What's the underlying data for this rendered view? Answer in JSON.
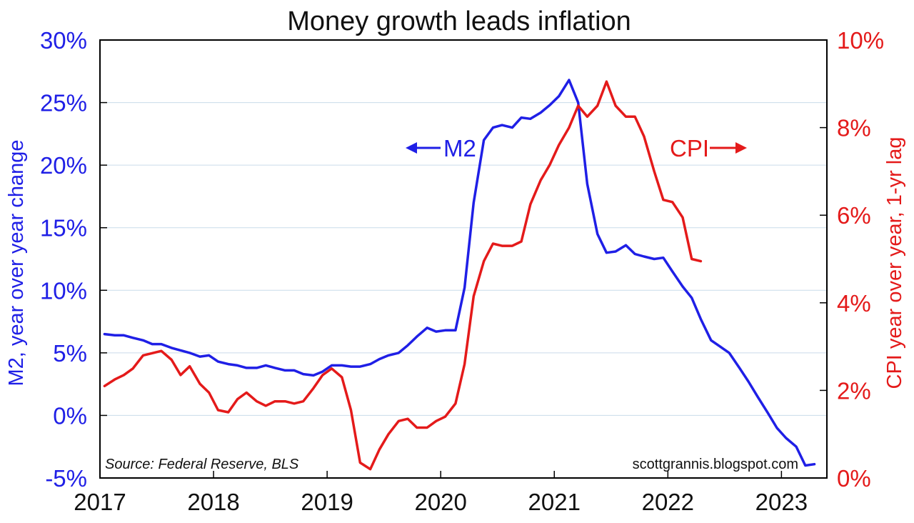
{
  "chart_data": {
    "type": "line",
    "title": "Money growth leads inflation",
    "ylabel": "M2, year over year change",
    "y2label": "CPI year over year, 1-yr lag",
    "ylim": [
      -5,
      30
    ],
    "y2lim": [
      0,
      10
    ],
    "xlim": [
      2017.0,
      2023.4
    ],
    "y_ticks": [
      "-5%",
      "0%",
      "5%",
      "10%",
      "15%",
      "20%",
      "25%",
      "30%"
    ],
    "y2_ticks": [
      "0%",
      "2%",
      "4%",
      "6%",
      "8%",
      "10%"
    ],
    "x_ticks": [
      "2017",
      "2018",
      "2019",
      "2020",
      "2021",
      "2022",
      "2023"
    ],
    "grid": "horizontal",
    "colors": {
      "m2": "#1f1fe6",
      "cpi": "#e41a1a",
      "grid": "#c9dbea"
    },
    "annotations": {
      "m2_label": "M2",
      "cpi_label": "CPI",
      "source": "Source: Federal Reserve, BLS",
      "credit": "scottgrannis.blogspot.com"
    },
    "series": [
      {
        "name": "M2",
        "axis": "left",
        "x": [
          2017.04,
          2017.13,
          2017.21,
          2017.29,
          2017.38,
          2017.46,
          2017.54,
          2017.63,
          2017.71,
          2017.79,
          2017.88,
          2017.96,
          2018.04,
          2018.13,
          2018.21,
          2018.29,
          2018.38,
          2018.46,
          2018.54,
          2018.63,
          2018.71,
          2018.79,
          2018.88,
          2018.96,
          2019.04,
          2019.13,
          2019.21,
          2019.29,
          2019.38,
          2019.46,
          2019.54,
          2019.63,
          2019.71,
          2019.79,
          2019.88,
          2019.96,
          2020.04,
          2020.13,
          2020.21,
          2020.29,
          2020.38,
          2020.46,
          2020.54,
          2020.63,
          2020.71,
          2020.79,
          2020.88,
          2020.96,
          2021.04,
          2021.13,
          2021.21,
          2021.29,
          2021.38,
          2021.46,
          2021.54,
          2021.63,
          2021.71,
          2021.79,
          2021.88,
          2021.96,
          2022.04,
          2022.13,
          2022.21,
          2022.29,
          2022.38,
          2022.46,
          2022.54,
          2022.63,
          2022.71,
          2022.79,
          2022.88,
          2022.96,
          2023.04,
          2023.13,
          2023.21,
          2023.29
        ],
        "values": [
          6.5,
          6.4,
          6.4,
          6.2,
          6.0,
          5.7,
          5.7,
          5.4,
          5.2,
          5.0,
          4.7,
          4.8,
          4.3,
          4.1,
          4.0,
          3.8,
          3.8,
          4.0,
          3.8,
          3.6,
          3.6,
          3.3,
          3.2,
          3.5,
          4.0,
          4.0,
          3.9,
          3.9,
          4.1,
          4.5,
          4.8,
          5.0,
          5.6,
          6.3,
          7.0,
          6.7,
          6.8,
          6.8,
          10.2,
          17.0,
          22.0,
          23.0,
          23.2,
          23.0,
          23.8,
          23.7,
          24.2,
          24.8,
          25.5,
          26.8,
          25.0,
          18.5,
          14.5,
          13.0,
          13.1,
          13.6,
          12.9,
          12.7,
          12.5,
          12.6,
          11.5,
          10.3,
          9.4,
          7.7,
          6.0,
          5.5,
          5.0,
          3.8,
          2.7,
          1.5,
          0.2,
          -1.0,
          -1.8,
          -2.5,
          -4.0,
          -3.9
        ]
      },
      {
        "name": "CPI",
        "axis": "right",
        "x": [
          2017.04,
          2017.13,
          2017.21,
          2017.29,
          2017.38,
          2017.46,
          2017.54,
          2017.63,
          2017.71,
          2017.79,
          2017.88,
          2017.96,
          2018.04,
          2018.13,
          2018.21,
          2018.29,
          2018.38,
          2018.46,
          2018.54,
          2018.63,
          2018.71,
          2018.79,
          2018.88,
          2018.96,
          2019.04,
          2019.13,
          2019.21,
          2019.29,
          2019.38,
          2019.46,
          2019.54,
          2019.63,
          2019.71,
          2019.79,
          2019.88,
          2019.96,
          2020.04,
          2020.13,
          2020.21,
          2020.29,
          2020.38,
          2020.46,
          2020.54,
          2020.63,
          2020.71,
          2020.79,
          2020.88,
          2020.96,
          2021.04,
          2021.13,
          2021.21,
          2021.29,
          2021.38,
          2021.46,
          2021.54,
          2021.63,
          2021.71,
          2021.79,
          2021.88,
          2021.96,
          2022.04,
          2022.13,
          2022.21,
          2022.29
        ],
        "values": [
          2.1,
          2.25,
          2.35,
          2.5,
          2.8,
          2.85,
          2.9,
          2.7,
          2.35,
          2.55,
          2.15,
          1.95,
          1.55,
          1.5,
          1.8,
          1.95,
          1.75,
          1.65,
          1.75,
          1.75,
          1.7,
          1.75,
          2.05,
          2.35,
          2.5,
          2.3,
          1.55,
          0.35,
          0.2,
          0.65,
          1.0,
          1.3,
          1.35,
          1.15,
          1.15,
          1.3,
          1.4,
          1.7,
          2.6,
          4.15,
          4.95,
          5.35,
          5.3,
          5.3,
          5.4,
          6.25,
          6.8,
          7.15,
          7.6,
          8.0,
          8.5,
          8.25,
          8.5,
          9.05,
          8.5,
          8.25,
          8.25,
          7.8,
          7.0,
          6.35,
          6.3,
          5.95,
          5.0,
          4.95
        ]
      }
    ]
  }
}
